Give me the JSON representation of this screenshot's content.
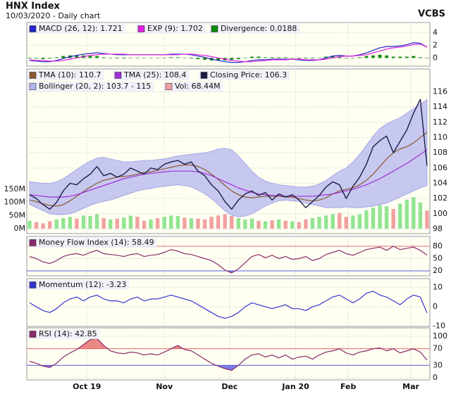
{
  "title": "HNX Index",
  "subtitle": "10/03/2020 - Daily chart",
  "brand": "VCBS",
  "chart_data": [
    {
      "type": "combo",
      "xlim": [
        0,
        59
      ],
      "ylim": [
        -1.3,
        5.6
      ],
      "yticks": [
        4,
        2,
        0
      ],
      "grid": true,
      "series": [
        {
          "name": "MACD (26, 12): 1.721",
          "kind": "line",
          "color": "#2424c8",
          "values": [
            -0.4,
            -0.5,
            -0.6,
            -0.6,
            -0.4,
            -0.1,
            0.2,
            0.4,
            0.6,
            0.7,
            0.8,
            0.7,
            0.6,
            0.5,
            0.5,
            0.5,
            0.5,
            0.5,
            0.5,
            0.5,
            0.5,
            0.6,
            0.6,
            0.6,
            0.5,
            0.3,
            0.1,
            -0.2,
            -0.4,
            -0.6,
            -0.7,
            -0.7,
            -0.6,
            -0.4,
            -0.3,
            -0.3,
            -0.2,
            -0.2,
            -0.2,
            -0.2,
            -0.3,
            -0.4,
            -0.4,
            -0.3,
            0.0,
            0.3,
            0.4,
            0.3,
            0.3,
            0.5,
            0.8,
            1.2,
            1.6,
            1.8,
            1.8,
            1.9,
            2.1,
            2.4,
            2.3,
            1.721
          ]
        },
        {
          "name": "EXP (9): 1.702",
          "kind": "line",
          "color": "#e020e0",
          "values": [
            -0.3,
            -0.4,
            -0.4,
            -0.5,
            -0.5,
            -0.4,
            -0.2,
            0.0,
            0.2,
            0.4,
            0.5,
            0.6,
            0.6,
            0.6,
            0.6,
            0.5,
            0.5,
            0.5,
            0.5,
            0.5,
            0.5,
            0.5,
            0.5,
            0.6,
            0.6,
            0.5,
            0.4,
            0.2,
            0.0,
            -0.2,
            -0.4,
            -0.5,
            -0.6,
            -0.6,
            -0.5,
            -0.4,
            -0.3,
            -0.3,
            -0.3,
            -0.2,
            -0.2,
            -0.3,
            -0.3,
            -0.3,
            -0.2,
            0.0,
            0.2,
            0.3,
            0.3,
            0.4,
            0.5,
            0.8,
            1.1,
            1.4,
            1.6,
            1.7,
            1.9,
            2.1,
            2.2,
            1.702
          ]
        },
        {
          "name": "Divergence: 0.0188",
          "kind": "bar",
          "color": "#0a8a0a",
          "values": [
            -0.1,
            -0.1,
            -0.2,
            -0.1,
            0.1,
            0.3,
            0.4,
            0.4,
            0.4,
            0.3,
            0.3,
            0.1,
            0.0,
            -0.1,
            -0.1,
            0.0,
            0.0,
            0.0,
            0.0,
            0.0,
            0.0,
            0.1,
            0.1,
            0.0,
            -0.1,
            -0.2,
            -0.3,
            -0.4,
            -0.4,
            -0.4,
            -0.3,
            -0.2,
            0.0,
            0.2,
            0.2,
            0.1,
            0.1,
            0.1,
            0.1,
            0.0,
            -0.1,
            -0.1,
            -0.1,
            0.0,
            0.2,
            0.3,
            0.2,
            0.0,
            0.0,
            0.1,
            0.3,
            0.4,
            0.5,
            0.4,
            0.2,
            0.2,
            0.2,
            0.3,
            0.1,
            0.0188
          ]
        }
      ]
    },
    {
      "type": "combo",
      "xlim": [
        0,
        59
      ],
      "ylim": [
        97.4,
        119
      ],
      "yticks": [
        98,
        100,
        102,
        104,
        106,
        108,
        110,
        112,
        114,
        116
      ],
      "grid": true,
      "y2lim": [
        -18.8,
        608
      ],
      "y2ticks": [
        {
          "value": 0,
          "label": "0M"
        },
        {
          "value": 50,
          "label": "50M"
        },
        {
          "value": 100,
          "label": "100M"
        },
        {
          "value": 150,
          "label": "150M"
        }
      ],
      "series": [
        {
          "name": "TMA (10): 110.7",
          "kind": "line",
          "color": "#8a5a2e",
          "values": [
            101.8,
            101.6,
            101.3,
            101.1,
            101.0,
            101.2,
            101.7,
            102.3,
            102.9,
            103.5,
            104.0,
            104.4,
            104.6,
            104.8,
            104.9,
            105.0,
            105.2,
            105.4,
            105.5,
            105.7,
            105.9,
            106.1,
            106.3,
            106.4,
            106.4,
            106.2,
            105.8,
            105.2,
            104.5,
            103.7,
            103.0,
            102.5,
            102.2,
            102.1,
            102.2,
            102.3,
            102.3,
            102.3,
            102.2,
            102.2,
            102.0,
            101.8,
            101.7,
            101.8,
            102.1,
            102.6,
            103.0,
            103.2,
            103.4,
            103.8,
            104.4,
            105.2,
            106.2,
            107.2,
            108.0,
            108.5,
            108.8,
            109.3,
            110.0,
            110.7
          ]
        },
        {
          "name": "TMA (25): 108.4",
          "kind": "line",
          "color": "#a030d8",
          "values": [
            102.5,
            102.4,
            102.3,
            102.2,
            102.2,
            102.2,
            102.3,
            102.5,
            102.8,
            103.1,
            103.4,
            103.7,
            104.0,
            104.3,
            104.6,
            104.8,
            105.0,
            105.2,
            105.3,
            105.4,
            105.5,
            105.6,
            105.6,
            105.6,
            105.6,
            105.5,
            105.3,
            105.0,
            104.6,
            104.2,
            103.8,
            103.4,
            103.1,
            102.8,
            102.6,
            102.5,
            102.4,
            102.4,
            102.3,
            102.3,
            102.3,
            102.3,
            102.3,
            102.4,
            102.5,
            102.6,
            102.8,
            103.0,
            103.2,
            103.5,
            103.8,
            104.2,
            104.6,
            105.1,
            105.6,
            106.1,
            106.6,
            107.2,
            107.8,
            108.4
          ]
        },
        {
          "name": "Closing Price: 106.3",
          "kind": "close",
          "color": "#1c1c48",
          "values": [
            102.5,
            102.0,
            101.2,
            100.6,
            101.5,
            103.0,
            104.0,
            103.8,
            104.6,
            105.2,
            106.2,
            105.0,
            105.3,
            104.8,
            105.2,
            106.0,
            105.6,
            105.2,
            106.0,
            105.8,
            106.5,
            106.8,
            107.0,
            106.5,
            106.8,
            105.6,
            105.0,
            103.8,
            103.0,
            101.6,
            100.6,
            101.8,
            102.6,
            103.0,
            102.4,
            102.8,
            101.8,
            102.6,
            102.2,
            102.5,
            101.8,
            100.8,
            101.6,
            102.4,
            103.5,
            104.2,
            103.8,
            102.0,
            103.6,
            104.8,
            106.5,
            108.8,
            109.6,
            110.2,
            108.0,
            109.5,
            111.0,
            113.2,
            115.0,
            106.3
          ]
        },
        {
          "name": "Bollinger (20, 2): 103.7 - 115",
          "kind": "band",
          "color": "#b4b6ee",
          "values": [
            104.2,
            104.1,
            104.0,
            104.0,
            104.2,
            104.6,
            105.2,
            105.8,
            106.4,
            106.9,
            107.3,
            107.4,
            107.2,
            107.0,
            106.8,
            106.8,
            106.9,
            107.0,
            107.0,
            107.1,
            107.2,
            107.4,
            107.6,
            107.7,
            107.8,
            107.9,
            108.0,
            108.2,
            108.5,
            108.6,
            108.4,
            107.6,
            106.6,
            105.6,
            104.8,
            104.3,
            104.0,
            103.8,
            103.7,
            103.6,
            103.5,
            103.5,
            103.6,
            103.9,
            104.4,
            105.0,
            105.6,
            106.0,
            106.8,
            107.8,
            109.0,
            110.2,
            111.2,
            111.8,
            112.2,
            112.6,
            113.2,
            113.8,
            114.4,
            115.0
          ],
          "lower": [
            101.2,
            100.8,
            100.4,
            100.0,
            99.9,
            99.9,
            100.0,
            100.3,
            100.7,
            101.1,
            101.4,
            101.6,
            101.8,
            102.1,
            102.4,
            102.7,
            103.0,
            103.2,
            103.3,
            103.5,
            103.6,
            103.7,
            103.8,
            103.7,
            103.5,
            103.1,
            102.6,
            102.0,
            101.2,
            100.4,
            99.8,
            99.6,
            99.7,
            100.0,
            100.5,
            101.0,
            101.4,
            101.7,
            101.8,
            101.7,
            101.6,
            101.4,
            101.2,
            101.0,
            100.8,
            100.8,
            100.8,
            100.9,
            100.8,
            100.8,
            100.9,
            101.0,
            101.2,
            101.4,
            101.8,
            102.2,
            102.6,
            103.0,
            103.4,
            103.7
          ]
        },
        {
          "name": "Vol: 68.44M",
          "kind": "volume",
          "axis": "y2",
          "color": "#f2a0a0",
          "up_color": "#92e492",
          "down_color": "#f2a0a0",
          "values": [
            30,
            25,
            20,
            28,
            35,
            40,
            45,
            38,
            50,
            48,
            55,
            40,
            35,
            38,
            42,
            50,
            45,
            30,
            35,
            40,
            45,
            50,
            48,
            42,
            40,
            38,
            35,
            45,
            50,
            55,
            48,
            40,
            35,
            38,
            30,
            28,
            32,
            35,
            30,
            28,
            25,
            35,
            40,
            45,
            50,
            55,
            60,
            45,
            50,
            55,
            70,
            80,
            90,
            85,
            75,
            95,
            110,
            120,
            100,
            68.44
          ]
        }
      ]
    },
    {
      "type": "line",
      "xlim": [
        0,
        59
      ],
      "ylim": [
        8,
        104
      ],
      "yticks": [
        20,
        50,
        80
      ],
      "grid": true,
      "bands": [
        20,
        80
      ],
      "band_colors": [
        "#5a5ae6",
        "#e66a6a"
      ],
      "series": [
        {
          "name": "Money Flow Index (14): 58.49",
          "kind": "line",
          "color": "#8a2a6a",
          "values": [
            55,
            50,
            42,
            38,
            45,
            55,
            60,
            62,
            58,
            65,
            70,
            62,
            60,
            58,
            55,
            60,
            62,
            55,
            58,
            60,
            65,
            72,
            68,
            62,
            60,
            55,
            50,
            45,
            35,
            22,
            15,
            25,
            40,
            55,
            60,
            52,
            58,
            50,
            55,
            48,
            50,
            55,
            45,
            50,
            60,
            65,
            70,
            62,
            58,
            65,
            72,
            75,
            78,
            70,
            80,
            72,
            75,
            78,
            70,
            58.49
          ]
        }
      ]
    },
    {
      "type": "line",
      "xlim": [
        0,
        59
      ],
      "ylim": [
        -10.2,
        14.5
      ],
      "yticks": [
        -10,
        0,
        10
      ],
      "grid": true,
      "series": [
        {
          "name": "Momentum (12): -3.23",
          "kind": "line",
          "color": "#3434d0",
          "values": [
            2,
            0,
            -2,
            -3,
            -1,
            2,
            4,
            5,
            3,
            5,
            6,
            4,
            3,
            3,
            2,
            4,
            5,
            3,
            4,
            4,
            5,
            6,
            5,
            4,
            3,
            1,
            -1,
            -3,
            -5,
            -6,
            -5,
            -3,
            0,
            2,
            1,
            0,
            -1,
            0,
            1,
            -1,
            -1,
            -2,
            0,
            1,
            3,
            5,
            6,
            4,
            2,
            4,
            7,
            8,
            6,
            5,
            3,
            1,
            4,
            6,
            5,
            -3.23
          ]
        }
      ]
    },
    {
      "type": "line",
      "xlim": [
        0,
        59
      ],
      "ylim": [
        -5.1,
        120.3
      ],
      "yticks": [
        0,
        30,
        70,
        100
      ],
      "grid": true,
      "bands": [
        30,
        70
      ],
      "band_colors": [
        "#5a5ae6",
        "#e66a6a"
      ],
      "xticks": [
        {
          "value": 8.5,
          "label": "Oct 19"
        },
        {
          "value": 20,
          "label": "Nov"
        },
        {
          "value": 29.7,
          "label": "Dec"
        },
        {
          "value": 39.5,
          "label": "Jan 20"
        },
        {
          "value": 47.3,
          "label": "Feb"
        },
        {
          "value": 56.6,
          "label": "Mar"
        }
      ],
      "series": [
        {
          "name": "RSI (14): 42.85",
          "kind": "line",
          "color": "#8a2a6a",
          "values": [
            40,
            35,
            28,
            25,
            35,
            50,
            60,
            68,
            80,
            92,
            95,
            78,
            65,
            60,
            58,
            62,
            60,
            55,
            58,
            55,
            62,
            70,
            78,
            68,
            65,
            55,
            45,
            35,
            28,
            22,
            18,
            30,
            45,
            55,
            58,
            50,
            55,
            48,
            55,
            45,
            50,
            52,
            45,
            55,
            62,
            65,
            70,
            60,
            55,
            62,
            65,
            70,
            72,
            65,
            70,
            60,
            65,
            70,
            62,
            42.85
          ]
        }
      ]
    }
  ]
}
